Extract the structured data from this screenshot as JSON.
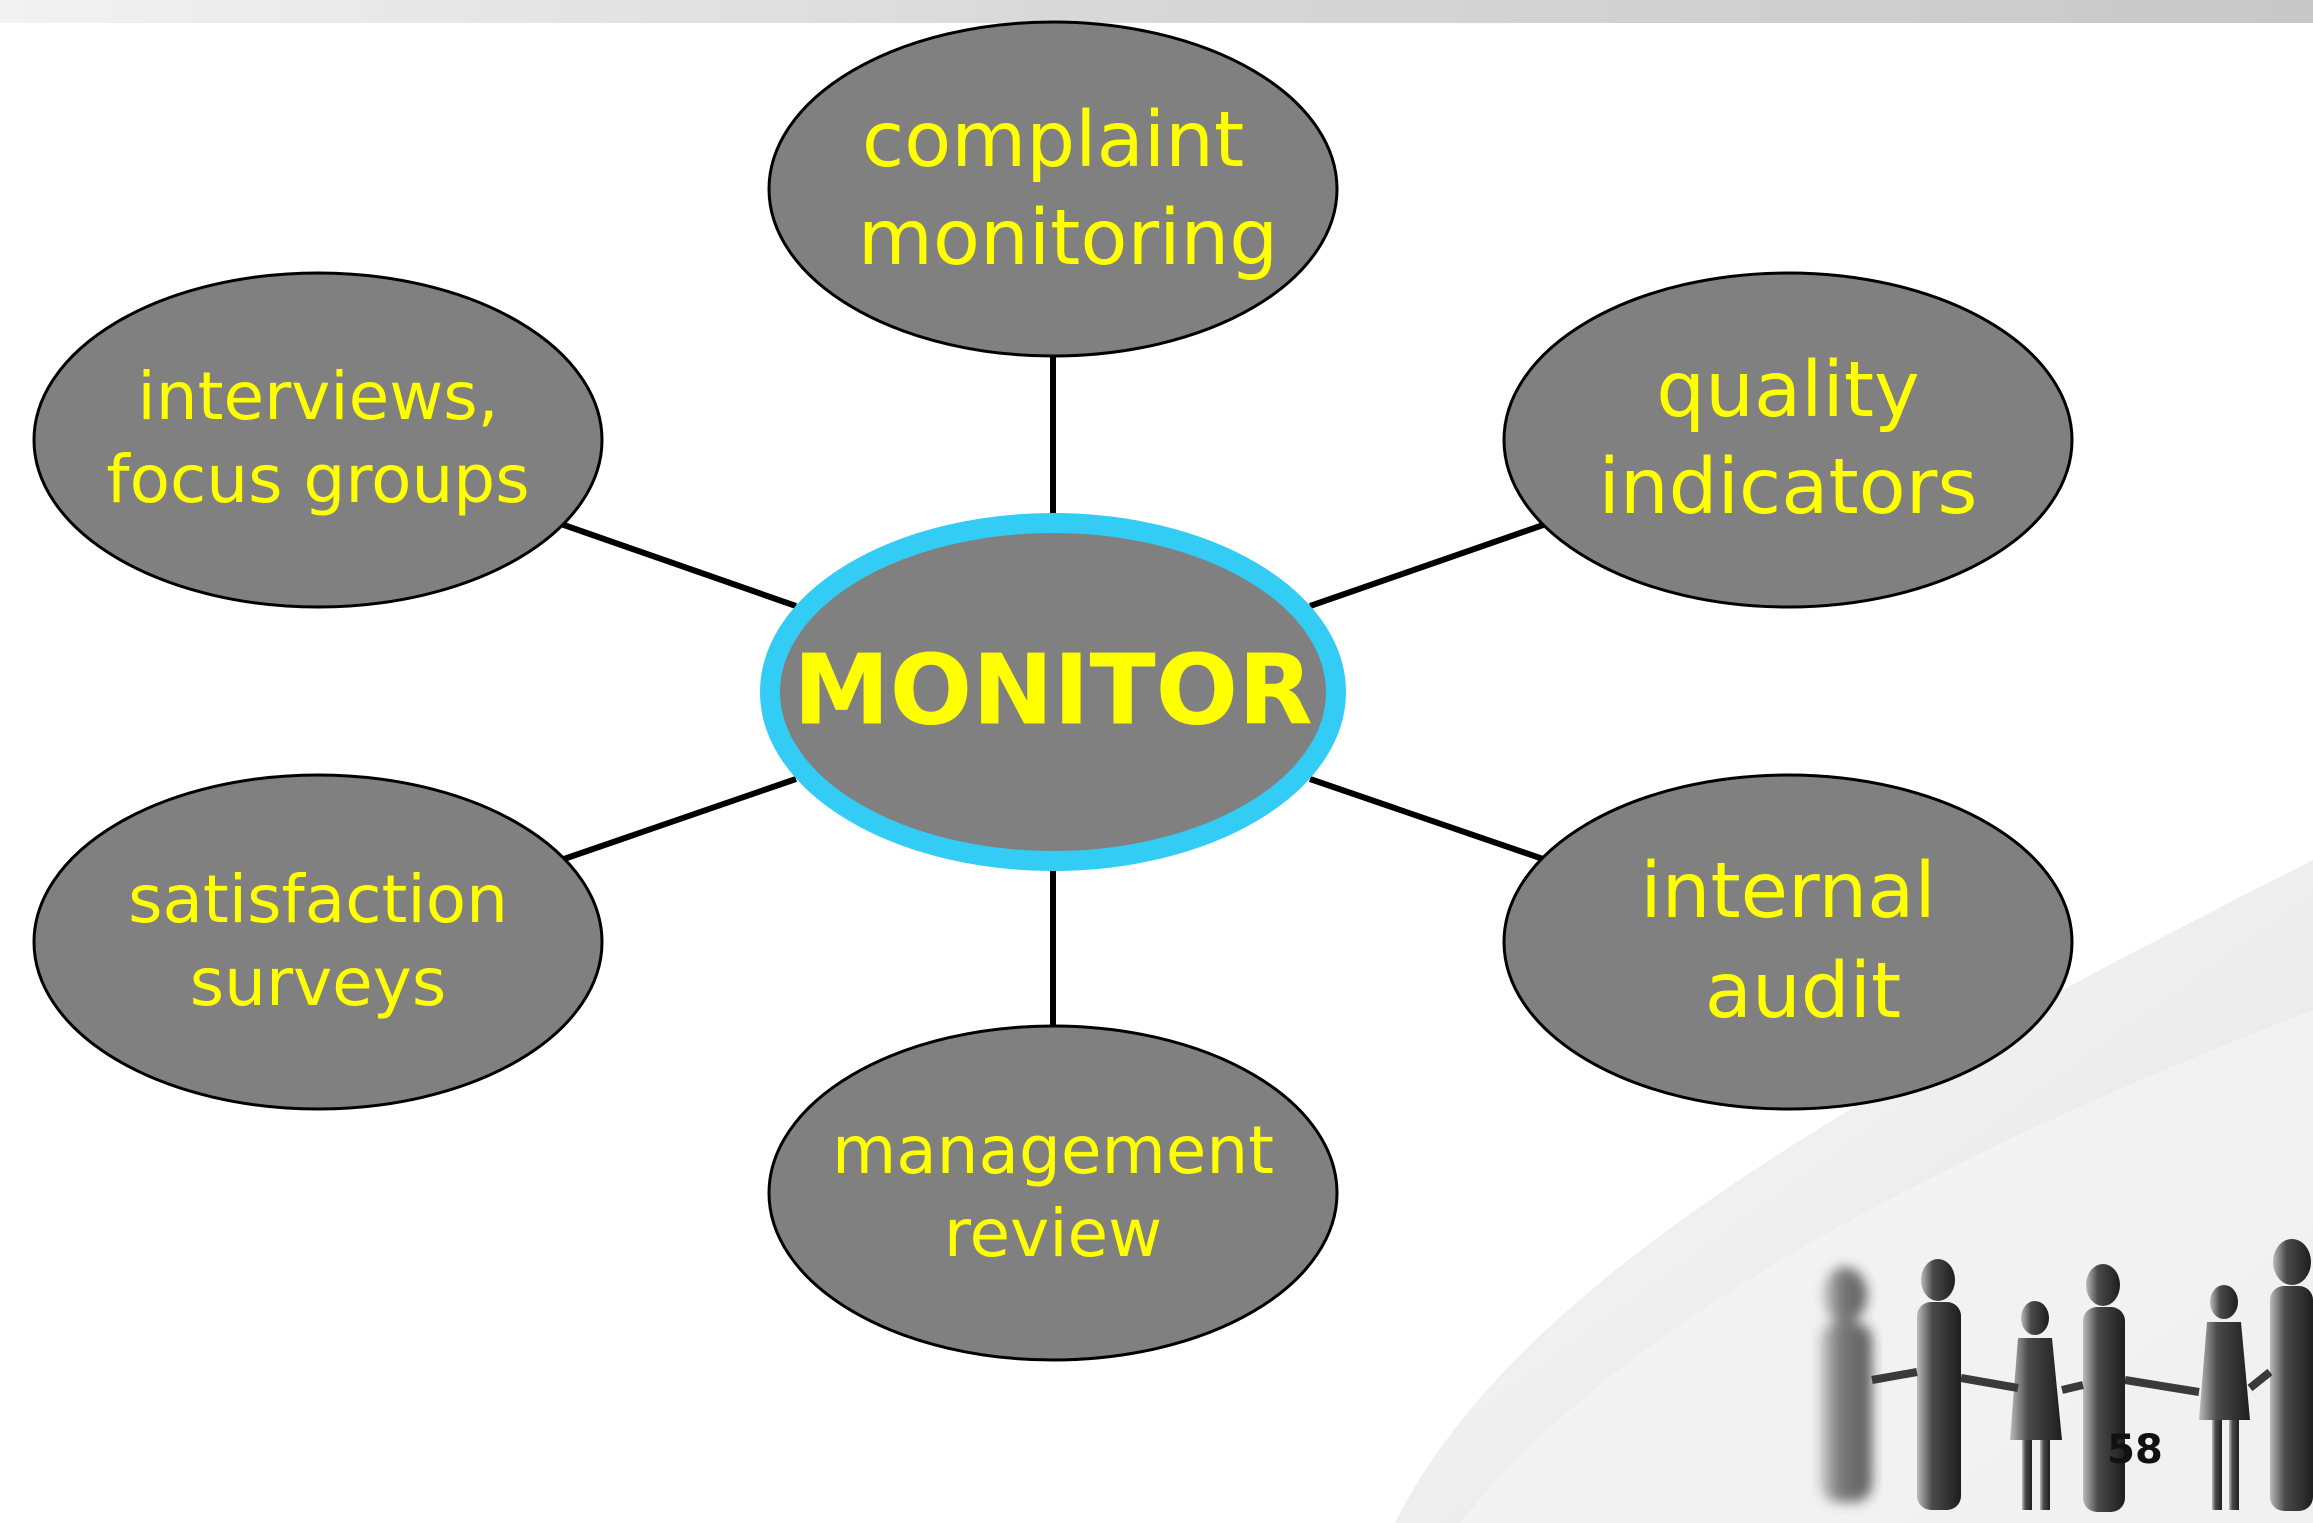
{
  "diagram": {
    "center": {
      "label": "MONITOR"
    },
    "nodes": [
      {
        "id": "complaint-monitoring",
        "lines": [
          "complaint",
          "monitoring"
        ]
      },
      {
        "id": "quality-indicators",
        "lines": [
          "quality",
          "indicators"
        ]
      },
      {
        "id": "internal-audit",
        "lines": [
          "internal",
          "audit"
        ]
      },
      {
        "id": "management-review",
        "lines": [
          "management",
          "review"
        ]
      },
      {
        "id": "satisfaction-surveys",
        "lines": [
          "satisfaction",
          "surveys"
        ]
      },
      {
        "id": "interviews-focus-groups",
        "lines": [
          "interviews,",
          "focus groups"
        ]
      }
    ]
  },
  "slide": {
    "page_number": "58"
  },
  "colors": {
    "node_fill": "#808080",
    "node_text": "#ffff00",
    "center_ring": "#33ccf5",
    "connector": "#000000",
    "page_number": "#111111"
  },
  "decor": {
    "image": "people-holding-hands-silhouette"
  }
}
